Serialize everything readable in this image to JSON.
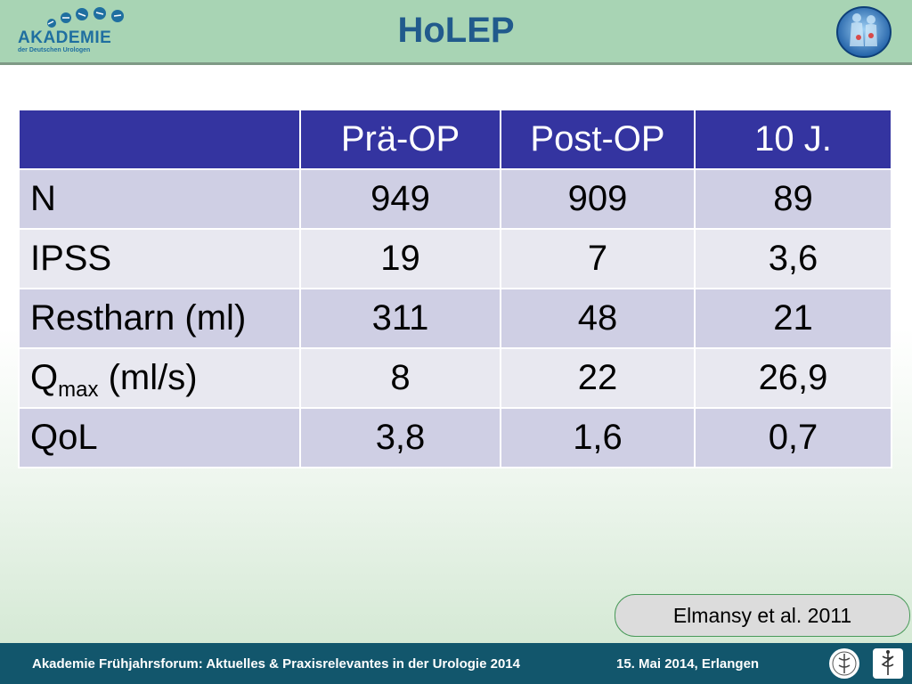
{
  "header": {
    "logo_text": "AKADEMIE",
    "logo_sub": "der Deutschen Urologen",
    "title": "HoLEP"
  },
  "table": {
    "columns": [
      "",
      "Prä-OP",
      "Post-OP",
      "10 J."
    ],
    "rows": [
      {
        "label": "N",
        "values": [
          "949",
          "909",
          "89"
        ]
      },
      {
        "label": "IPSS",
        "values": [
          "19",
          "7",
          "3,6"
        ]
      },
      {
        "label": "Restharn (ml)",
        "values": [
          "311",
          "48",
          "21"
        ]
      },
      {
        "label_main": "Q",
        "label_sub": "max",
        "label_rest": " (ml/s)",
        "values": [
          "8",
          "22",
          "26,9"
        ]
      },
      {
        "label": "QoL",
        "values": [
          "3,8",
          "1,6",
          "0,7"
        ]
      }
    ]
  },
  "citation": "Elmansy et al. 2011",
  "footer": {
    "event": "Akademie Frühjahrsforum: Aktuelles & Praxisrelevantes in der Urologie 2014",
    "date": "15. Mai 2014, Erlangen"
  },
  "colors": {
    "header_bg": "#a8d4b4",
    "title": "#215a8c",
    "table_header": "#3434a0",
    "row_dark": "#cfcfe4",
    "row_light": "#e8e8f0",
    "footer_bg": "#12566c"
  },
  "icons": [
    "akademie-logo-icon",
    "anatomy-emblem-icon",
    "society-seal-icon",
    "caduceus-icon"
  ]
}
